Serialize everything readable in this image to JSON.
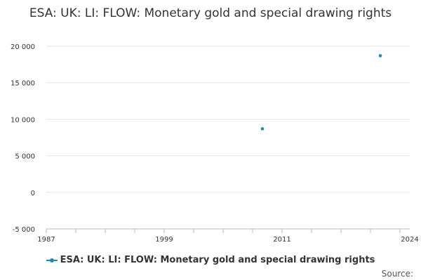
{
  "chart_data": {
    "type": "scatter",
    "title": "ESA: UK: LI: FLOW: Monetary gold and special drawing rights",
    "xlim": [
      1987,
      2024
    ],
    "ylim": [
      -5000,
      20000
    ],
    "x_ticks": [
      "1987",
      "1999",
      "2011",
      "2024"
    ],
    "y_ticks": [
      {
        "value": 20000,
        "label": "20 000"
      },
      {
        "value": 15000,
        "label": "15 000"
      },
      {
        "value": 10000,
        "label": "10 000"
      },
      {
        "value": 5000,
        "label": "5 000"
      },
      {
        "value": 0,
        "label": "0"
      },
      {
        "value": -5000,
        "label": "-5 000"
      }
    ],
    "grid": true,
    "legend_position": "bottom",
    "series": [
      {
        "name": "ESA: UK: LI: FLOW: Monetary gold and special drawing rights",
        "color": "#1f8ab8",
        "points": [
          {
            "x": 2009,
            "y": 8700
          },
          {
            "x": 2021,
            "y": 18700
          }
        ]
      }
    ]
  },
  "source_label": "Source:"
}
